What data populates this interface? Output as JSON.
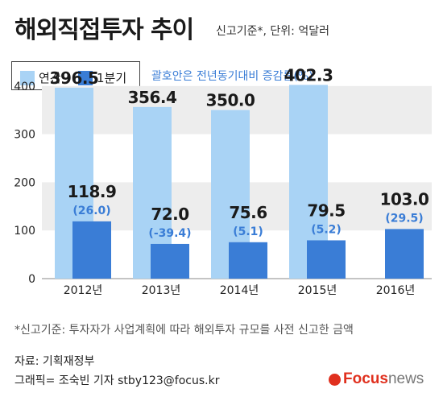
{
  "header": {
    "title": "해외직접투자 추이",
    "subtitle": "신고기준*, 단위: 억달러"
  },
  "legend": {
    "items": [
      {
        "label": "연간",
        "color": "#a9d3f5"
      },
      {
        "label": "1분기",
        "color": "#3a7dd6"
      }
    ],
    "paren_note": "괄호안은 전년동기대비 증감률(%)"
  },
  "footer": {
    "footnote": "*신고기준: 투자자가 사업계획에 따라 해외투자 규모를 사전 신고한 금액",
    "source": "자료: 기획재정부",
    "credit": "그래픽= 조숙빈 기자 stby123@focus.kr",
    "brand_focus": "Focus",
    "brand_news": "news"
  },
  "chart_data": {
    "type": "bar",
    "categories": [
      "2012년",
      "2013년",
      "2014년",
      "2015년",
      "2016년"
    ],
    "series": [
      {
        "name": "연간",
        "values": [
          396.5,
          356.4,
          350.0,
          402.3,
          null
        ],
        "labels": [
          "396.5",
          "356.4",
          "350.0",
          "402.3",
          ""
        ],
        "color": "#a9d3f5"
      },
      {
        "name": "1분기",
        "values": [
          118.9,
          72.0,
          75.6,
          79.5,
          103.0
        ],
        "labels": [
          "118.9",
          "72.0",
          "75.6",
          "79.5",
          "103.0"
        ],
        "color": "#3a7dd6"
      }
    ],
    "growth_rates": [
      "(26.0)",
      "(-39.4)",
      "(5.1)",
      "(5.2)",
      "(29.5)"
    ],
    "growth_color": "#3a7dd6",
    "yticks": [
      "0",
      "100",
      "200",
      "300",
      "400"
    ],
    "ylim": [
      0,
      430
    ],
    "grid": "banded"
  }
}
